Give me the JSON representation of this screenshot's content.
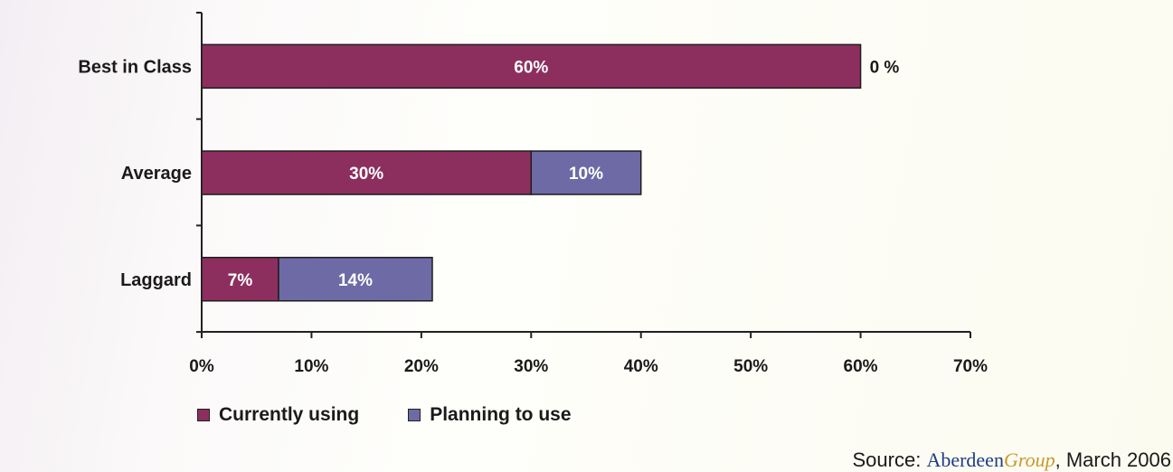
{
  "colors": {
    "currently_using": "#8c2f5e",
    "planning_to_use": "#6d6aa6"
  },
  "chart_data": {
    "type": "bar",
    "orientation": "horizontal",
    "stacked": true,
    "categories": [
      "Best in Class",
      "Average",
      "Laggard"
    ],
    "series": [
      {
        "name": "Currently using",
        "values": [
          60,
          30,
          7
        ],
        "data_labels": [
          "60%",
          "30%",
          "7%"
        ]
      },
      {
        "name": "Planning to use",
        "values": [
          0,
          10,
          14
        ],
        "data_labels": [
          "0 %",
          "10%",
          "14%"
        ]
      }
    ],
    "xlim": [
      0,
      70
    ],
    "xticks": [
      0,
      10,
      20,
      30,
      40,
      50,
      60,
      70
    ],
    "xtick_labels": [
      "0%",
      "10%",
      "20%",
      "30%",
      "40%",
      "50%",
      "60%",
      "70%"
    ],
    "grid": false,
    "legend_position": "bottom-left"
  },
  "legend": {
    "currently_using": "Currently using",
    "planning_to_use": "Planning to use"
  },
  "source": {
    "prefix": "Source: ",
    "brand_part1": "Aberdeen",
    "brand_part2": "Group",
    "suffix": ", March 2006"
  }
}
